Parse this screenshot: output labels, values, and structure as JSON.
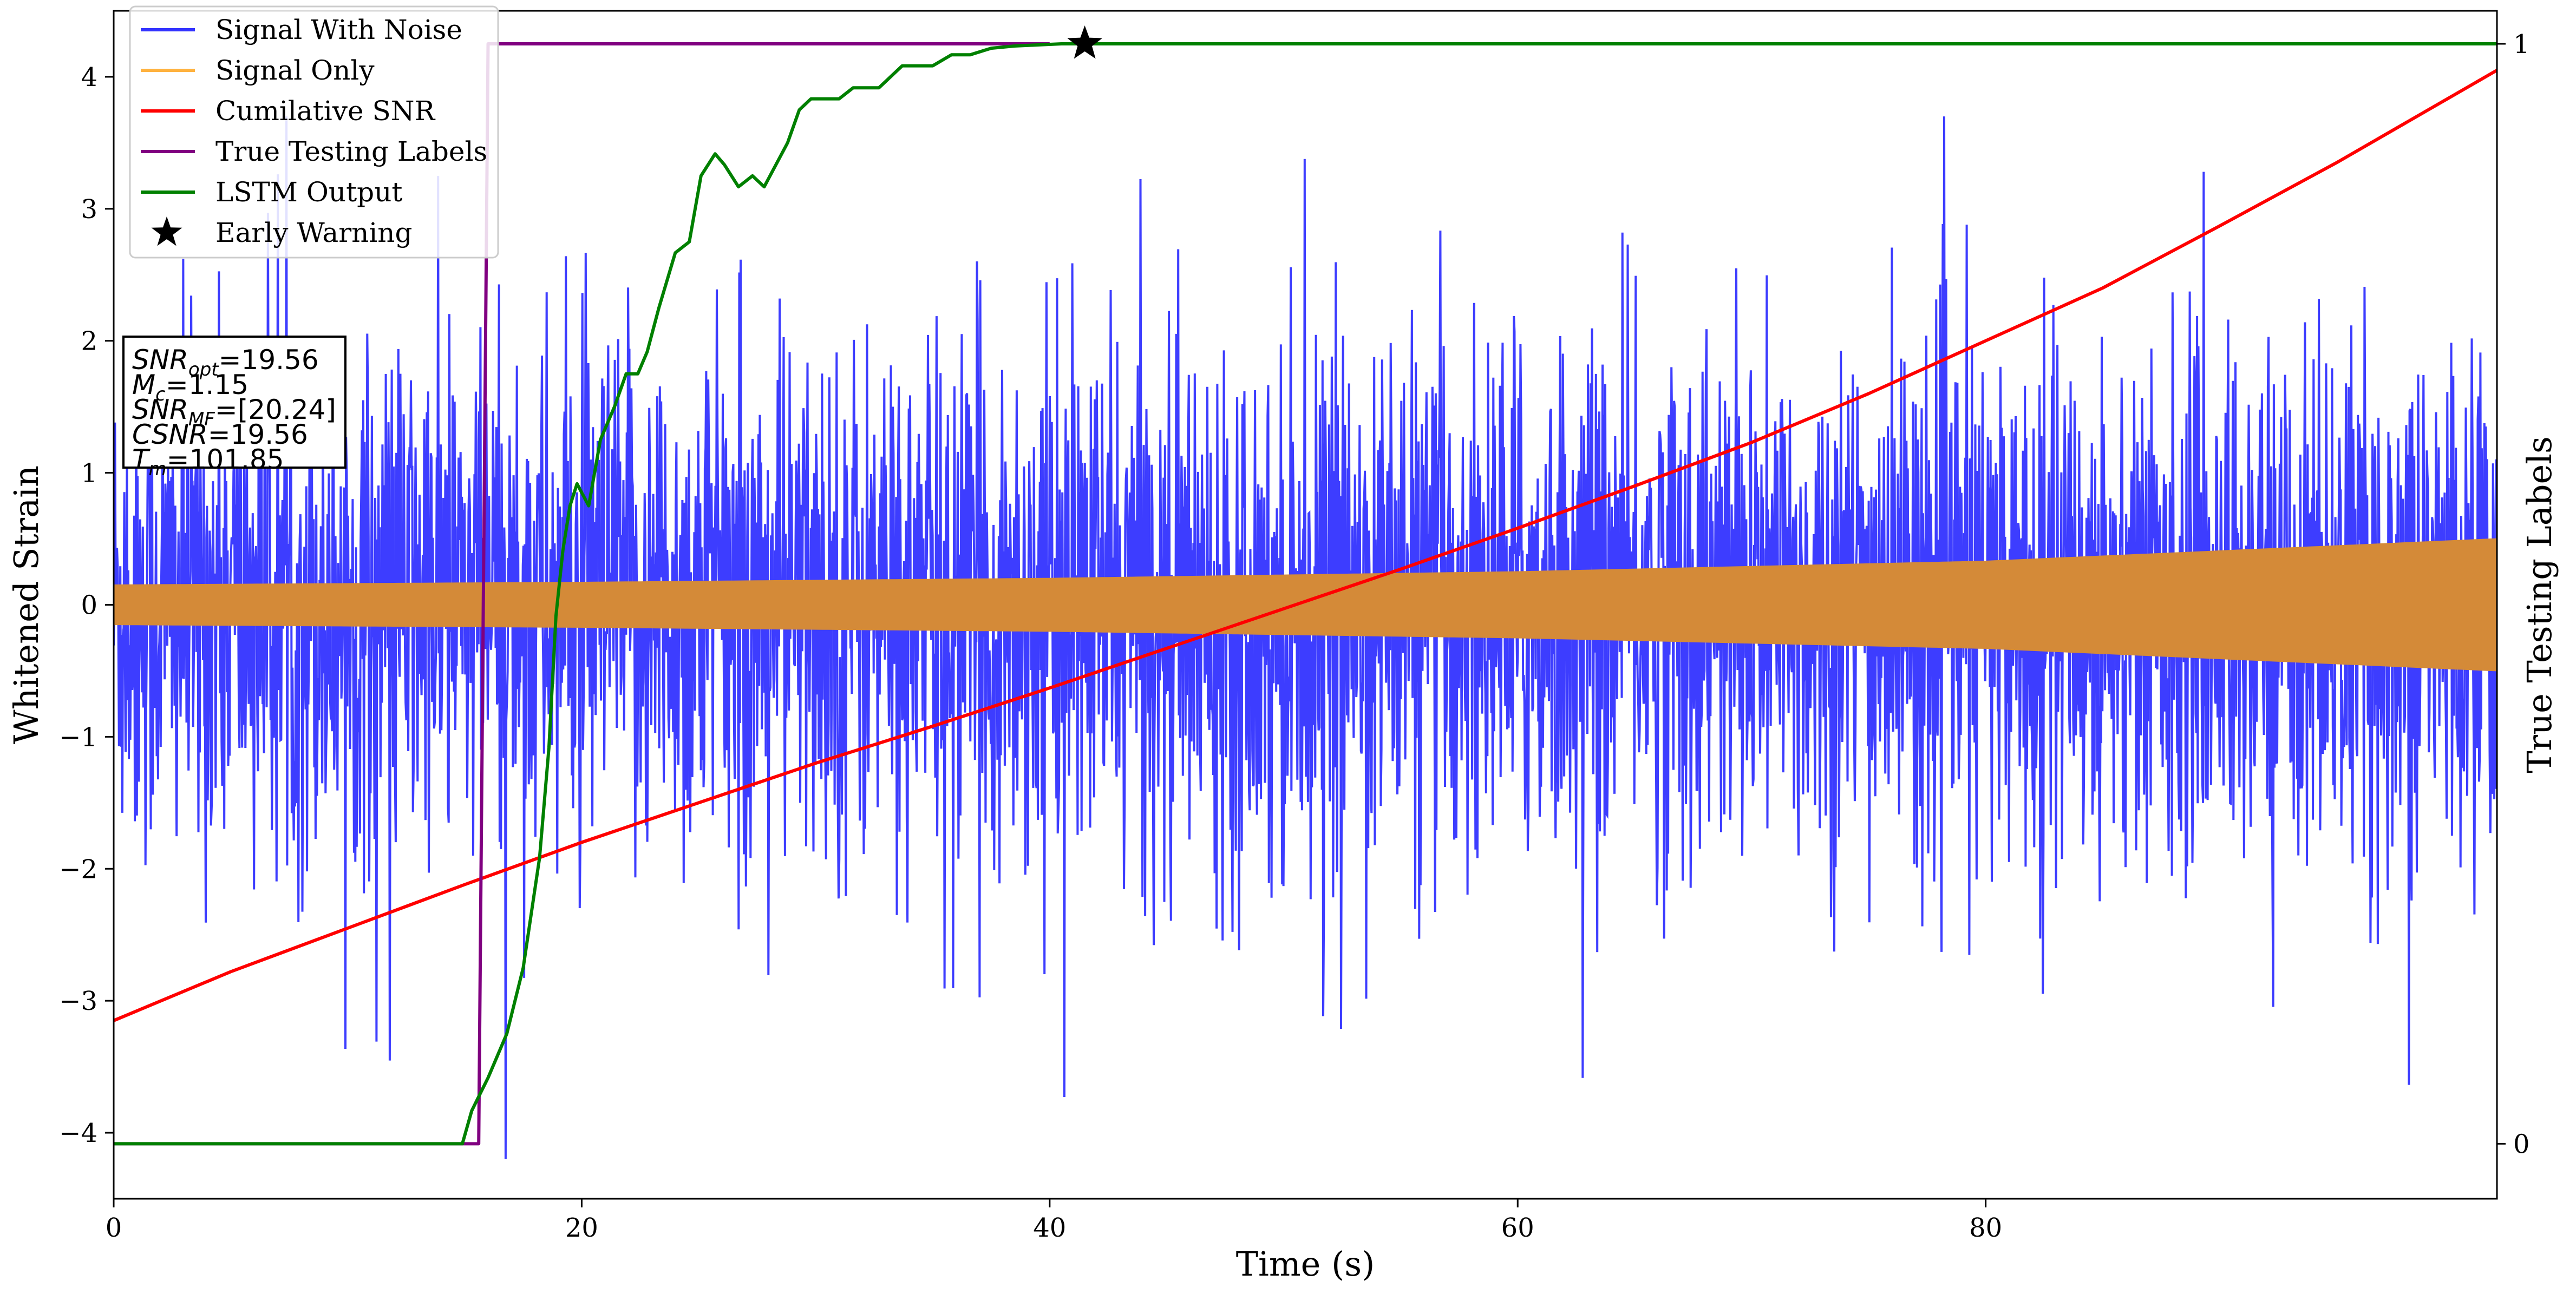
{
  "chart_data": {
    "type": "line",
    "xlabel": "Time (s)",
    "ylabel": "Whitened Strain",
    "ylabel_right": "True Testing Labels",
    "xlim": [
      0,
      101.85
    ],
    "ylim": [
      -4.5,
      4.5
    ],
    "ylim_right": [
      -0.05,
      1.03
    ],
    "x_ticks": [
      0,
      20,
      40,
      60,
      80
    ],
    "y_ticks": [
      -4,
      -3,
      -2,
      -1,
      0,
      1,
      2,
      3,
      4
    ],
    "y_right_ticks": [
      0,
      1
    ],
    "grid": false,
    "legend_position": "top-left",
    "legend": [
      {
        "label": "Signal With Noise",
        "color": "#3333ff",
        "marker": "line"
      },
      {
        "label": "Signal Only",
        "color": "#ffb23f",
        "marker": "line"
      },
      {
        "label": "Cumilative SNR",
        "color": "#ff0000",
        "marker": "line"
      },
      {
        "label": "True Testing Labels",
        "color": "#800080",
        "marker": "line"
      },
      {
        "label": "LSTM Output",
        "color": "#008000",
        "marker": "line"
      },
      {
        "label": "Early Warning",
        "color": "#000000",
        "marker": "star"
      }
    ],
    "info_box": [
      {
        "main": "SNR",
        "sub": "opt",
        "rest": "=19.56"
      },
      {
        "main": "M",
        "sub": "c",
        "rest": "=1.15"
      },
      {
        "main": "SNR",
        "sub": "MF",
        "rest": "=[20.24]"
      },
      {
        "main": "CSNR",
        "sub": "",
        "rest": "=19.56"
      },
      {
        "main": "T",
        "sub": "m",
        "rest": "=101.85"
      }
    ],
    "series": [
      {
        "name": "Signal With Noise",
        "axis": "left",
        "style": "noise band",
        "color": "#3333ff",
        "x": [
          0,
          101.85
        ],
        "typical_amplitude": 1.6,
        "peak_amplitude": 3.7
      },
      {
        "name": "Signal Only",
        "axis": "left",
        "style": "oscillation envelope",
        "color": "#d48a38",
        "x": [
          0,
          20,
          40,
          60,
          80,
          101.85
        ],
        "envelope": [
          0.15,
          0.17,
          0.2,
          0.25,
          0.33,
          0.5
        ]
      },
      {
        "name": "Cumilative SNR",
        "axis": "left",
        "color": "#ff0000",
        "x": [
          0,
          5,
          10,
          15,
          20,
          25,
          30,
          35,
          40,
          45,
          50,
          55,
          60,
          65,
          70,
          75,
          80,
          85,
          90,
          95,
          101.85
        ],
        "y": [
          -3.15,
          -2.78,
          -2.45,
          -2.12,
          -1.8,
          -1.5,
          -1.2,
          -0.92,
          -0.63,
          -0.33,
          -0.03,
          0.27,
          0.58,
          0.9,
          1.23,
          1.6,
          2.0,
          2.4,
          2.87,
          3.35,
          4.05
        ]
      },
      {
        "name": "True Testing Labels",
        "axis": "right",
        "color": "#800080",
        "x": [
          0,
          15.6,
          15.6,
          16.0,
          40.0
        ],
        "y": [
          0,
          0,
          0,
          1,
          1
        ]
      },
      {
        "name": "LSTM Output",
        "axis": "right",
        "color": "#008000",
        "x": [
          0,
          14.9,
          15.3,
          16.0,
          16.8,
          17.5,
          18.2,
          18.6,
          18.9,
          19.2,
          19.5,
          19.8,
          20.3,
          20.8,
          21.4,
          21.9,
          22.4,
          22.8,
          23.3,
          24.0,
          24.6,
          25.1,
          25.7,
          26.1,
          26.7,
          27.3,
          27.8,
          28.3,
          28.8,
          29.3,
          29.8,
          30.3,
          31.0,
          31.6,
          32.2,
          32.7,
          33.2,
          33.7,
          34.3,
          35.0,
          35.8,
          36.6,
          37.5,
          38.5,
          39.5,
          40.5,
          41.5,
          45,
          55,
          70,
          85,
          101.85
        ],
        "y": [
          0,
          0,
          0.03,
          0.06,
          0.1,
          0.16,
          0.26,
          0.36,
          0.48,
          0.54,
          0.58,
          0.6,
          0.58,
          0.64,
          0.67,
          0.7,
          0.7,
          0.72,
          0.76,
          0.81,
          0.82,
          0.88,
          0.9,
          0.89,
          0.87,
          0.88,
          0.87,
          0.89,
          0.91,
          0.94,
          0.95,
          0.95,
          0.95,
          0.96,
          0.96,
          0.96,
          0.97,
          0.98,
          0.98,
          0.98,
          0.99,
          0.99,
          0.996,
          0.998,
          0.999,
          1.0,
          1.0,
          1.0,
          1.0,
          1.0,
          1.0,
          1.0
        ]
      }
    ],
    "early_warning": {
      "x": 41.5,
      "y": 1.0,
      "axis": "right"
    }
  }
}
